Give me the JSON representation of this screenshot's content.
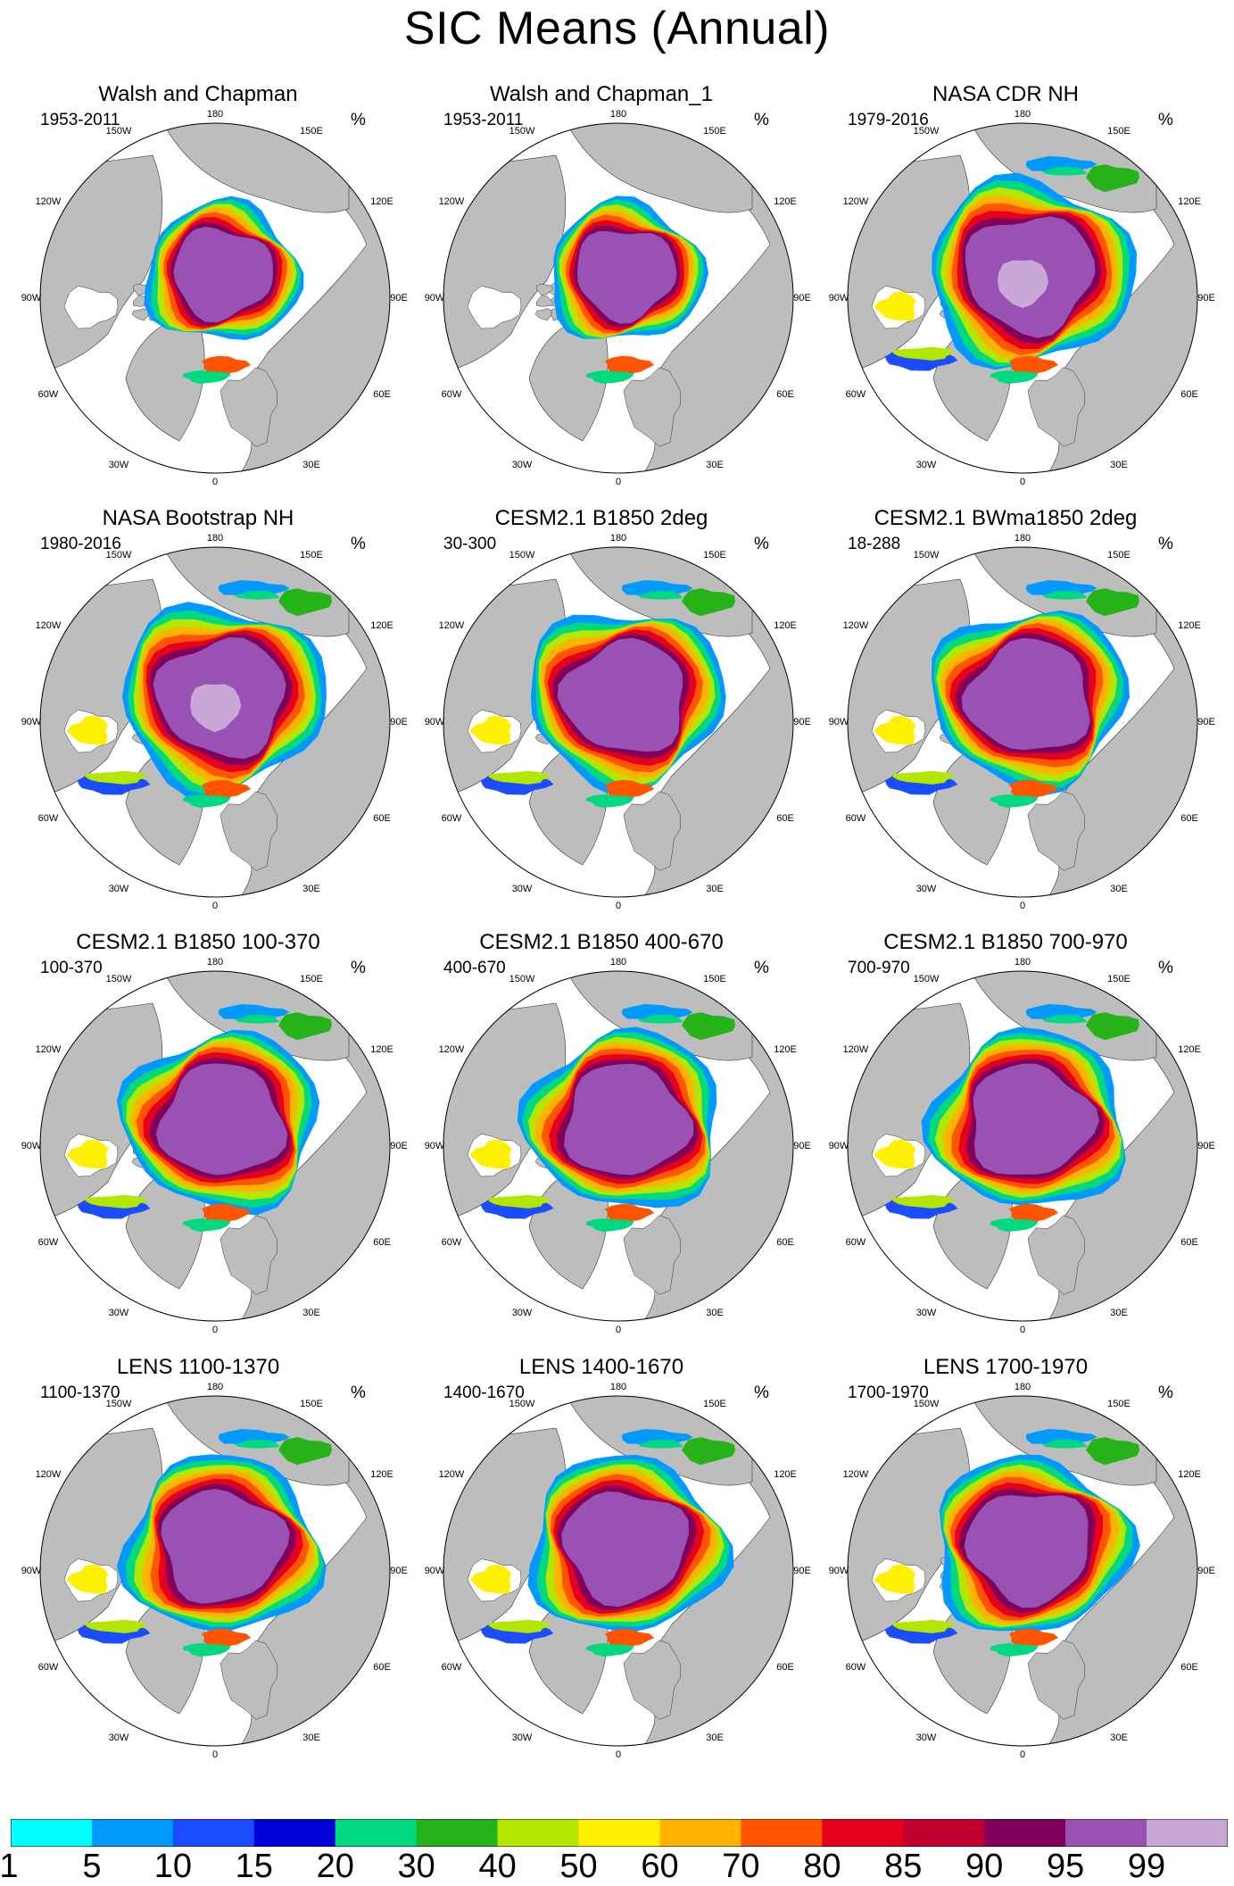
{
  "title": "SIC Means (Annual)",
  "unit": "%",
  "longitude_labels": [
    "180",
    "150E",
    "120E",
    "90E",
    "60E",
    "30E",
    "0",
    "30W",
    "60W",
    "90W",
    "120W",
    "150W"
  ],
  "panels": [
    {
      "title": "Walsh and Chapman",
      "period": "1953-2011",
      "pattern": "obs_wc"
    },
    {
      "title": "Walsh and Chapman_1",
      "period": "1953-2011",
      "pattern": "obs_wc"
    },
    {
      "title": "NASA CDR NH",
      "period": "1979-2016",
      "pattern": "obs_nasa"
    },
    {
      "title": "NASA Bootstrap NH",
      "period": "1980-2016",
      "pattern": "obs_nasa"
    },
    {
      "title": "CESM2.1 B1850 2deg",
      "period": "30-300",
      "pattern": "model"
    },
    {
      "title": "CESM2.1 BWma1850 2deg",
      "period": "18-288",
      "pattern": "model"
    },
    {
      "title": "CESM2.1 B1850 100-370",
      "period": "100-370",
      "pattern": "model"
    },
    {
      "title": "CESM2.1 B1850 400-670",
      "period": "400-670",
      "pattern": "model"
    },
    {
      "title": "CESM2.1 B1850 700-970",
      "period": "700-970",
      "pattern": "model"
    },
    {
      "title": "LENS 1100-1370",
      "period": "1100-1370",
      "pattern": "lens"
    },
    {
      "title": "LENS 1400-1670",
      "period": "1400-1670",
      "pattern": "lens"
    },
    {
      "title": "LENS 1700-1970",
      "period": "1700-1970",
      "pattern": "lens"
    }
  ],
  "colorbar": {
    "labels": [
      "1",
      "5",
      "10",
      "15",
      "20",
      "30",
      "40",
      "50",
      "60",
      "70",
      "80",
      "85",
      "90",
      "95",
      "99"
    ],
    "colors": [
      "#00ffff",
      "#0099ff",
      "#1a4dff",
      "#0000d9",
      "#00d980",
      "#26b31a",
      "#b3e600",
      "#ffef00",
      "#ffb300",
      "#ff5500",
      "#e60020",
      "#c2002e",
      "#80005a",
      "#9951b3",
      "#c9a8d8"
    ]
  }
}
